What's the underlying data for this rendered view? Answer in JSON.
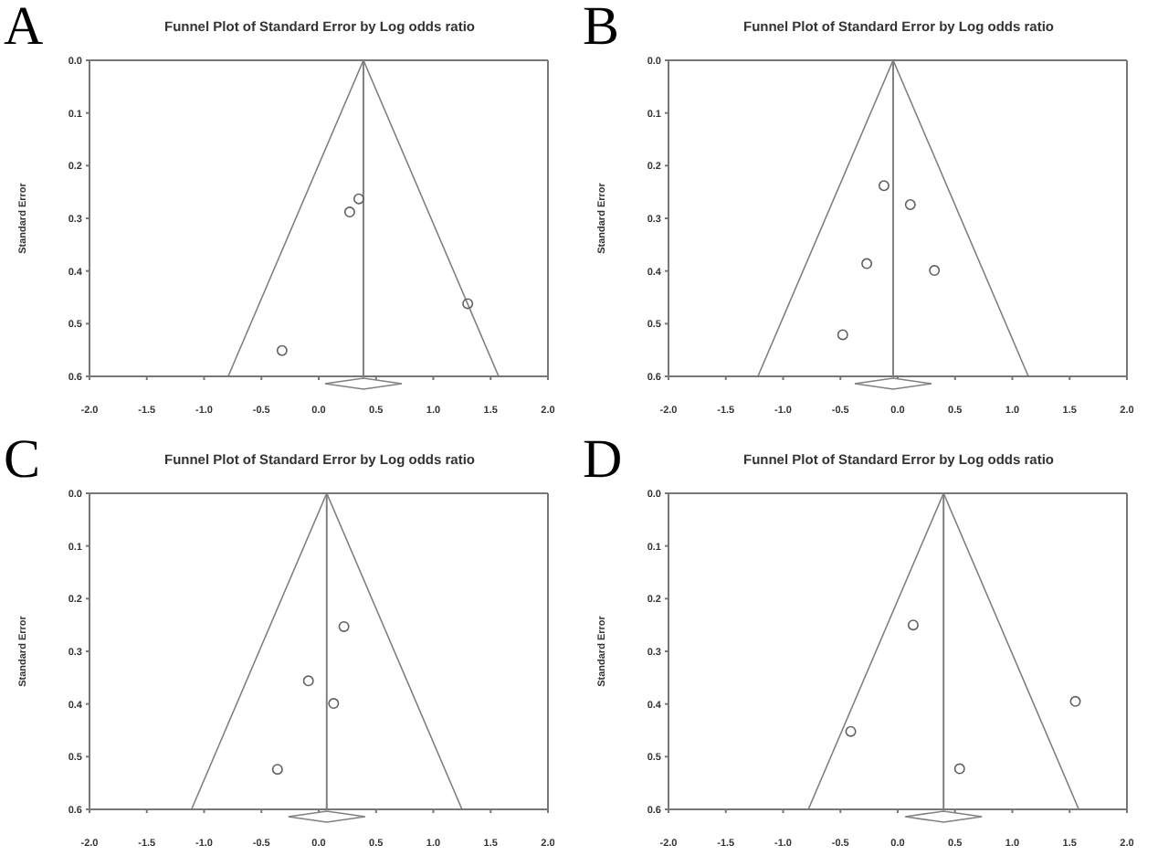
{
  "chart_data": [
    {
      "type": "scatter",
      "title": "Funnel Plot of Standard Error by Log odds ratio",
      "ylabel": "Standard Error",
      "annotations": [
        "A"
      ],
      "xlim": [
        -2,
        2
      ],
      "ylim": [
        0.6,
        0
      ],
      "xticks": [
        {
          "value": -2,
          "label": "-2.0"
        },
        {
          "value": -1.5,
          "label": "-1.5"
        },
        {
          "value": -1,
          "label": "-1.0"
        },
        {
          "value": -0.5,
          "label": "-0.5"
        },
        {
          "value": 0,
          "label": "0.0"
        },
        {
          "value": 0.5,
          "label": "0.5"
        },
        {
          "value": 1,
          "label": "1.0"
        },
        {
          "value": 1.5,
          "label": "1.5"
        },
        {
          "value": 2,
          "label": "2.0"
        }
      ],
      "yticks": [
        {
          "value": 0,
          "label": "0.0"
        },
        {
          "value": 0.1,
          "label": "0.1"
        },
        {
          "value": 0.2,
          "label": "0.2"
        },
        {
          "value": 0.3,
          "label": "0.3"
        },
        {
          "value": 0.4,
          "label": "0.4"
        },
        {
          "value": 0.5,
          "label": "0.5"
        },
        {
          "value": 0.6,
          "label": "0.6"
        }
      ],
      "grid": false,
      "marker": "circle",
      "ref_lines": [
        {
          "axis": "x",
          "value": 0.39,
          "color": "#808080"
        }
      ],
      "series": [
        {
          "color": "#606060",
          "x": [
            0.35,
            0.27,
            1.3,
            -0.32
          ],
          "values": [
            0.263,
            0.288,
            0.462,
            0.551
          ]
        },
        {
          "type": "line",
          "color": "#808080",
          "marker": "none",
          "x": [
            -0.79,
            0.39,
            1.57
          ],
          "values": [
            0.6,
            0,
            0.6
          ]
        }
      ]
    },
    {
      "type": "scatter",
      "title": "Funnel Plot of Standard Error by Log odds ratio",
      "ylabel": "Standard Error",
      "annotations": [
        "B"
      ],
      "xlim": [
        -2,
        2
      ],
      "ylim": [
        0.6,
        0
      ],
      "xticks": [
        {
          "value": -2,
          "label": "-2.0"
        },
        {
          "value": -1.5,
          "label": "-1.5"
        },
        {
          "value": -1,
          "label": "-1.0"
        },
        {
          "value": -0.5,
          "label": "-0.5"
        },
        {
          "value": 0,
          "label": "0.0"
        },
        {
          "value": 0.5,
          "label": "0.5"
        },
        {
          "value": 1,
          "label": "1.0"
        },
        {
          "value": 1.5,
          "label": "1.5"
        },
        {
          "value": 2,
          "label": "2.0"
        }
      ],
      "yticks": [
        {
          "value": 0,
          "label": "0.0"
        },
        {
          "value": 0.1,
          "label": "0.1"
        },
        {
          "value": 0.2,
          "label": "0.2"
        },
        {
          "value": 0.3,
          "label": "0.3"
        },
        {
          "value": 0.4,
          "label": "0.4"
        },
        {
          "value": 0.5,
          "label": "0.5"
        },
        {
          "value": 0.6,
          "label": "0.6"
        }
      ],
      "grid": false,
      "marker": "circle",
      "ref_lines": [
        {
          "axis": "x",
          "value": -0.04,
          "color": "#808080"
        }
      ],
      "series": [
        {
          "color": "#606060",
          "x": [
            -0.12,
            0.11,
            -0.27,
            0.32,
            -0.48
          ],
          "values": [
            0.238,
            0.274,
            0.386,
            0.399,
            0.521
          ]
        },
        {
          "type": "line",
          "color": "#808080",
          "marker": "none",
          "x": [
            -1.22,
            -0.04,
            1.14
          ],
          "values": [
            0.6,
            0,
            0.6
          ]
        }
      ]
    },
    {
      "type": "scatter",
      "title": "Funnel Plot of Standard Error by Log odds ratio",
      "ylabel": "Standard Error",
      "annotations": [
        "C"
      ],
      "xlim": [
        -2,
        2
      ],
      "ylim": [
        0.6,
        0
      ],
      "xticks": [
        {
          "value": -2,
          "label": "-2.0"
        },
        {
          "value": -1.5,
          "label": "-1.5"
        },
        {
          "value": -1,
          "label": "-1.0"
        },
        {
          "value": -0.5,
          "label": "-0.5"
        },
        {
          "value": 0,
          "label": "0.0"
        },
        {
          "value": 0.5,
          "label": "0.5"
        },
        {
          "value": 1,
          "label": "1.0"
        },
        {
          "value": 1.5,
          "label": "1.5"
        },
        {
          "value": 2,
          "label": "2.0"
        }
      ],
      "yticks": [
        {
          "value": 0,
          "label": "0.0"
        },
        {
          "value": 0.1,
          "label": "0.1"
        },
        {
          "value": 0.2,
          "label": "0.2"
        },
        {
          "value": 0.3,
          "label": "0.3"
        },
        {
          "value": 0.4,
          "label": "0.4"
        },
        {
          "value": 0.5,
          "label": "0.5"
        },
        {
          "value": 0.6,
          "label": "0.6"
        }
      ],
      "grid": false,
      "marker": "circle",
      "ref_lines": [
        {
          "axis": "x",
          "value": 0.07,
          "color": "#808080"
        }
      ],
      "series": [
        {
          "color": "#606060",
          "x": [
            0.22,
            -0.09,
            0.13,
            -0.36
          ],
          "values": [
            0.253,
            0.356,
            0.399,
            0.524
          ]
        },
        {
          "type": "line",
          "color": "#808080",
          "marker": "none",
          "x": [
            -1.11,
            0.07,
            1.25
          ],
          "values": [
            0.6,
            0,
            0.6
          ]
        }
      ]
    },
    {
      "type": "scatter",
      "title": "Funnel Plot of Standard Error by Log odds ratio",
      "ylabel": "Standard Error",
      "annotations": [
        "D"
      ],
      "xlim": [
        -2,
        2
      ],
      "ylim": [
        0.6,
        0
      ],
      "xticks": [
        {
          "value": -2,
          "label": "-2.0"
        },
        {
          "value": -1.5,
          "label": "-1.5"
        },
        {
          "value": -1,
          "label": "-1.0"
        },
        {
          "value": -0.5,
          "label": "-0.5"
        },
        {
          "value": 0,
          "label": "0.0"
        },
        {
          "value": 0.5,
          "label": "0.5"
        },
        {
          "value": 1,
          "label": "1.0"
        },
        {
          "value": 1.5,
          "label": "1.5"
        },
        {
          "value": 2,
          "label": "2.0"
        }
      ],
      "yticks": [
        {
          "value": 0,
          "label": "0.0"
        },
        {
          "value": 0.1,
          "label": "0.1"
        },
        {
          "value": 0.2,
          "label": "0.2"
        },
        {
          "value": 0.3,
          "label": "0.3"
        },
        {
          "value": 0.4,
          "label": "0.4"
        },
        {
          "value": 0.5,
          "label": "0.5"
        },
        {
          "value": 0.6,
          "label": "0.6"
        }
      ],
      "grid": false,
      "marker": "circle",
      "ref_lines": [
        {
          "axis": "x",
          "value": 0.4,
          "color": "#808080"
        }
      ],
      "series": [
        {
          "color": "#606060",
          "x": [
            0.135,
            -0.41,
            0.54,
            1.55
          ],
          "values": [
            0.25,
            0.452,
            0.523,
            0.395
          ]
        },
        {
          "type": "line",
          "color": "#808080",
          "marker": "none",
          "x": [
            -0.78,
            0.4,
            1.58
          ],
          "values": [
            0.6,
            0,
            0.6
          ]
        }
      ]
    }
  ]
}
